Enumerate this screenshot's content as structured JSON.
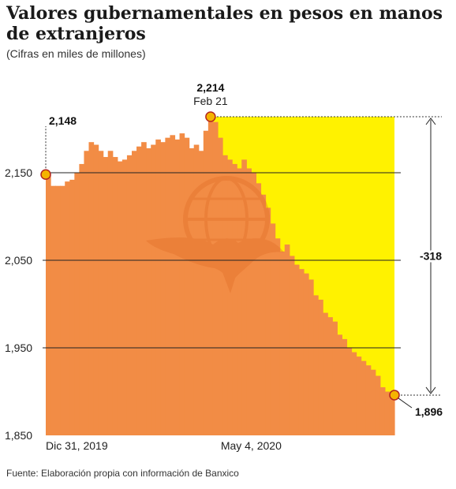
{
  "title": "Valores gubernamentales en pesos en manos de extranjeros",
  "subtitle": "(Cifras en miles de millones)",
  "source": "Fuente: Elaboración propia con información de Banxico",
  "colors": {
    "area": "#f28c45",
    "highlight": "#fff200",
    "marker_fill": "#f5b400",
    "marker_stroke": "#b3261e",
    "watermark": "#e06a25"
  },
  "chart_data": {
    "type": "area",
    "title": "Valores gubernamentales en pesos en manos de extranjeros",
    "subtitle": "(Cifras en miles de millones)",
    "ylim": [
      1850,
      2220
    ],
    "y_ticks": [
      {
        "value": 2150,
        "label": "2,150"
      },
      {
        "value": 2050,
        "label": "2,050"
      },
      {
        "value": 1950,
        "label": "1,950"
      },
      {
        "value": 1850,
        "label": "1,850"
      }
    ],
    "x_labels": [
      {
        "index": 0,
        "label": "Dic 31, 2019"
      },
      {
        "index": 43,
        "label": "May 4, 2020"
      }
    ],
    "grid": false,
    "values": [
      2148,
      2135,
      2135,
      2135,
      2140,
      2142,
      2150,
      2160,
      2175,
      2185,
      2182,
      2175,
      2168,
      2175,
      2168,
      2163,
      2165,
      2170,
      2175,
      2180,
      2185,
      2178,
      2182,
      2188,
      2185,
      2190,
      2193,
      2188,
      2195,
      2190,
      2178,
      2182,
      2175,
      2198,
      2214,
      2208,
      2190,
      2170,
      2165,
      2160,
      2155,
      2165,
      2155,
      2150,
      2138,
      2125,
      2110,
      2092,
      2075,
      2060,
      2068,
      2055,
      2045,
      2040,
      2035,
      2028,
      2010,
      2005,
      1990,
      1985,
      1980,
      1965,
      1960,
      1950,
      1945,
      1940,
      1935,
      1930,
      1925,
      1918,
      1905,
      1900,
      1896
    ],
    "annotations": [
      {
        "index": 0,
        "label": "2,148"
      },
      {
        "index": 34,
        "label": "2,214",
        "sublabel": "Feb 21"
      },
      {
        "index": 72,
        "label": "1,896"
      }
    ],
    "difference": {
      "label": "-318",
      "from": 2214,
      "to": 1896
    }
  }
}
